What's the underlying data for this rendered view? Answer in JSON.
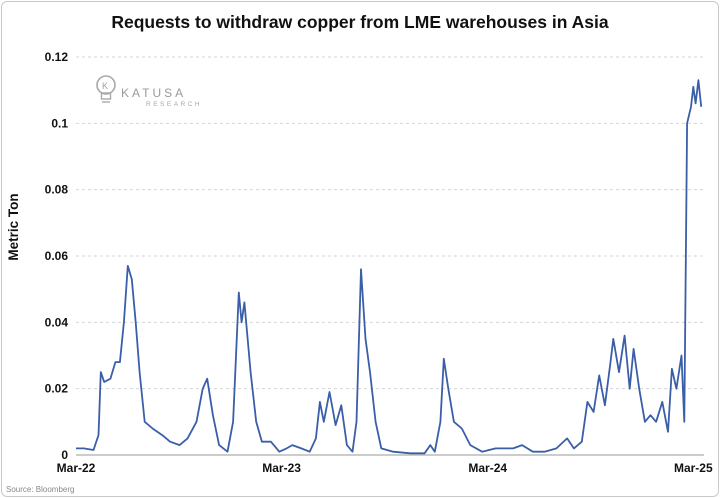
{
  "chart_data": {
    "type": "line",
    "title": "Requests to withdraw copper from LME warehouses in Asia",
    "ylabel": "Metric Ton",
    "xlabel": "",
    "ylim": [
      0,
      0.12
    ],
    "xlim": [
      "2022-03-01",
      "2025-03-20"
    ],
    "y_ticks": [
      "0",
      "0.02",
      "0.04",
      "0.06",
      "0.08",
      "0.1",
      "0.12"
    ],
    "y_tick_values": [
      0,
      0.02,
      0.04,
      0.06,
      0.08,
      0.1,
      0.12
    ],
    "x_ticks": [
      {
        "date": "2022-03-01",
        "label": "Mar-22"
      },
      {
        "date": "2023-03-01",
        "label": "Mar-23"
      },
      {
        "date": "2024-03-01",
        "label": "Mar-24"
      },
      {
        "date": "2025-03-01",
        "label": "Mar-25"
      }
    ],
    "grid": "horizontal",
    "line_color": "#3a5ea8",
    "series": [
      {
        "name": "",
        "points": [
          [
            "2022-03-01",
            0.002
          ],
          [
            "2022-03-15",
            0.002
          ],
          [
            "2022-04-01",
            0.0015
          ],
          [
            "2022-04-10",
            0.006
          ],
          [
            "2022-04-14",
            0.025
          ],
          [
            "2022-04-20",
            0.022
          ],
          [
            "2022-05-01",
            0.023
          ],
          [
            "2022-05-10",
            0.028
          ],
          [
            "2022-05-18",
            0.028
          ],
          [
            "2022-05-25",
            0.04
          ],
          [
            "2022-06-01",
            0.057
          ],
          [
            "2022-06-08",
            0.053
          ],
          [
            "2022-06-15",
            0.04
          ],
          [
            "2022-06-22",
            0.025
          ],
          [
            "2022-07-01",
            0.01
          ],
          [
            "2022-07-15",
            0.008
          ],
          [
            "2022-08-01",
            0.006
          ],
          [
            "2022-08-15",
            0.004
          ],
          [
            "2022-09-01",
            0.003
          ],
          [
            "2022-09-15",
            0.005
          ],
          [
            "2022-10-01",
            0.01
          ],
          [
            "2022-10-12",
            0.02
          ],
          [
            "2022-10-20",
            0.023
          ],
          [
            "2022-10-30",
            0.012
          ],
          [
            "2022-11-10",
            0.003
          ],
          [
            "2022-11-25",
            0.001
          ],
          [
            "2022-12-05",
            0.01
          ],
          [
            "2022-12-15",
            0.049
          ],
          [
            "2022-12-20",
            0.04
          ],
          [
            "2022-12-25",
            0.046
          ],
          [
            "2023-01-05",
            0.025
          ],
          [
            "2023-01-15",
            0.01
          ],
          [
            "2023-01-25",
            0.004
          ],
          [
            "2023-02-10",
            0.004
          ],
          [
            "2023-02-25",
            0.001
          ],
          [
            "2023-03-10",
            0.002
          ],
          [
            "2023-03-20",
            0.003
          ],
          [
            "2023-04-05",
            0.002
          ],
          [
            "2023-04-20",
            0.001
          ],
          [
            "2023-05-01",
            0.005
          ],
          [
            "2023-05-08",
            0.016
          ],
          [
            "2023-05-15",
            0.01
          ],
          [
            "2023-05-25",
            0.019
          ],
          [
            "2023-06-05",
            0.009
          ],
          [
            "2023-06-15",
            0.015
          ],
          [
            "2023-06-25",
            0.003
          ],
          [
            "2023-07-05",
            0.001
          ],
          [
            "2023-07-12",
            0.01
          ],
          [
            "2023-07-20",
            0.056
          ],
          [
            "2023-07-28",
            0.035
          ],
          [
            "2023-08-05",
            0.025
          ],
          [
            "2023-08-15",
            0.01
          ],
          [
            "2023-08-25",
            0.002
          ],
          [
            "2023-09-15",
            0.001
          ],
          [
            "2023-10-15",
            0.0005
          ],
          [
            "2023-11-10",
            0.0005
          ],
          [
            "2023-11-20",
            0.003
          ],
          [
            "2023-11-28",
            0.001
          ],
          [
            "2023-12-08",
            0.01
          ],
          [
            "2023-12-14",
            0.029
          ],
          [
            "2023-12-22",
            0.02
          ],
          [
            "2024-01-01",
            0.01
          ],
          [
            "2024-01-15",
            0.008
          ],
          [
            "2024-01-30",
            0.003
          ],
          [
            "2024-02-20",
            0.001
          ],
          [
            "2024-03-15",
            0.002
          ],
          [
            "2024-04-15",
            0.002
          ],
          [
            "2024-05-01",
            0.003
          ],
          [
            "2024-05-20",
            0.001
          ],
          [
            "2024-06-10",
            0.001
          ],
          [
            "2024-07-01",
            0.002
          ],
          [
            "2024-07-20",
            0.005
          ],
          [
            "2024-08-01",
            0.002
          ],
          [
            "2024-08-15",
            0.004
          ],
          [
            "2024-08-25",
            0.016
          ],
          [
            "2024-09-05",
            0.013
          ],
          [
            "2024-09-15",
            0.024
          ],
          [
            "2024-09-25",
            0.015
          ],
          [
            "2024-10-05",
            0.028
          ],
          [
            "2024-10-10",
            0.035
          ],
          [
            "2024-10-20",
            0.025
          ],
          [
            "2024-10-30",
            0.036
          ],
          [
            "2024-11-08",
            0.02
          ],
          [
            "2024-11-15",
            0.032
          ],
          [
            "2024-11-25",
            0.02
          ],
          [
            "2024-12-05",
            0.01
          ],
          [
            "2024-12-15",
            0.012
          ],
          [
            "2024-12-25",
            0.01
          ],
          [
            "2025-01-05",
            0.016
          ],
          [
            "2025-01-15",
            0.007
          ],
          [
            "2025-01-22",
            0.026
          ],
          [
            "2025-01-30",
            0.02
          ],
          [
            "2025-02-08",
            0.03
          ],
          [
            "2025-02-13",
            0.01
          ],
          [
            "2025-02-18",
            0.1
          ],
          [
            "2025-02-25",
            0.105
          ],
          [
            "2025-03-01",
            0.111
          ],
          [
            "2025-03-05",
            0.106
          ],
          [
            "2025-03-10",
            0.113
          ],
          [
            "2025-03-15",
            0.105
          ]
        ]
      }
    ]
  },
  "logo": {
    "name": "KATUSA",
    "sub": "RESEARCH"
  },
  "source_note": "Source: Bloomberg"
}
